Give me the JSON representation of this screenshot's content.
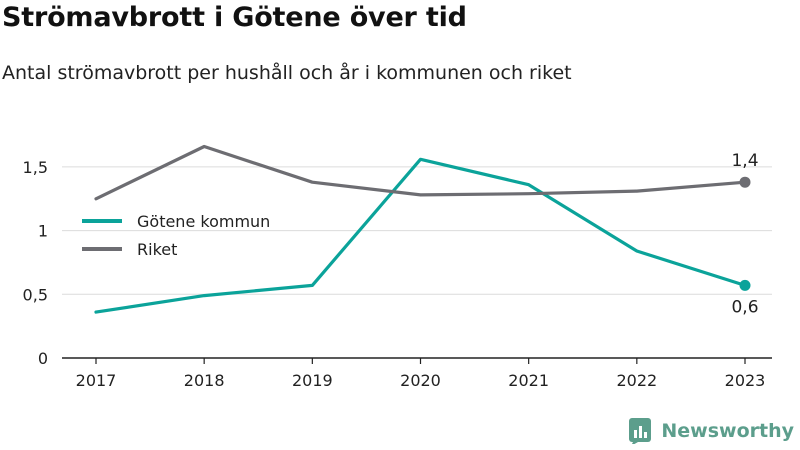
{
  "header": {
    "title": "Strömavbrott i Götene över tid",
    "subtitle": "Antal strömavbrott per hushåll och år i kommunen och riket"
  },
  "brand": {
    "name": "Newsworthy",
    "icon": "newsworthy-logo-icon",
    "color": "#5c9e8c"
  },
  "chart_data": {
    "type": "line",
    "x": [
      "2017",
      "2018",
      "2019",
      "2020",
      "2021",
      "2022",
      "2023"
    ],
    "ylim": [
      0,
      1.75
    ],
    "yticks": [
      {
        "value": 0,
        "label": "0"
      },
      {
        "value": 0.5,
        "label": "0,5"
      },
      {
        "value": 1,
        "label": "1"
      },
      {
        "value": 1.5,
        "label": "1,5"
      }
    ],
    "grid": true,
    "legend_position": "left",
    "series": [
      {
        "name": "Götene kommun",
        "color": "#0ba39a",
        "values": [
          0.36,
          0.49,
          0.57,
          1.56,
          1.36,
          0.84,
          0.57
        ],
        "end_label": "0,6",
        "end_label_position": "below"
      },
      {
        "name": "Riket",
        "color": "#6d6d72",
        "values": [
          1.25,
          1.66,
          1.38,
          1.28,
          1.29,
          1.31,
          1.38
        ],
        "end_label": "1,4",
        "end_label_position": "above"
      }
    ]
  }
}
